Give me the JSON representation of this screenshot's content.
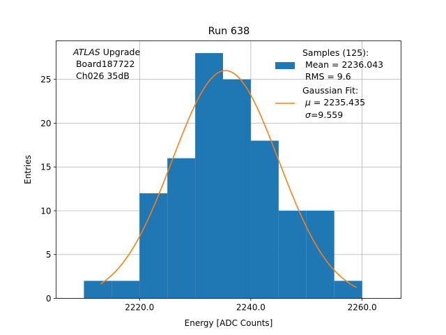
{
  "chart_data": {
    "type": "histogram",
    "title": "Run 638",
    "xlabel": "Energy [ADC Counts]",
    "ylabel": "Entries",
    "xlim": [
      2205,
      2267
    ],
    "ylim": [
      0,
      29.4
    ],
    "grid": true,
    "x_ticks": [
      2220,
      2240,
      2260
    ],
    "x_tick_labels": [
      "2220.0",
      "2240.0",
      "2260.0"
    ],
    "y_ticks": [
      0,
      5,
      10,
      15,
      20,
      25
    ],
    "y_tick_labels": [
      "0",
      "5",
      "10",
      "15",
      "20",
      "25"
    ],
    "bin_edges": [
      2210,
      2215,
      2220,
      2225,
      2230,
      2235,
      2240,
      2245,
      2250,
      2255,
      2260
    ],
    "counts": [
      2,
      2,
      12,
      16,
      28,
      25,
      18,
      10,
      10,
      2
    ],
    "fit": {
      "type": "gaussian",
      "mu": 2235.435,
      "sigma": 9.559,
      "amplitude": 26,
      "x_range": [
        2213,
        2259
      ]
    },
    "annotation": {
      "atlas": "ATLAS",
      "rest": " Upgrade",
      "line2": " Board187722",
      "line3": " Ch026 35dB"
    },
    "legend": {
      "position": "top-right",
      "samples": {
        "line1": "Samples (125):",
        "line2": " Mean = 2236.043",
        "line3": " RMS = 9.6"
      },
      "fit": {
        "line1": "Gaussian Fit:",
        "mu_symbol": "μ",
        "mu_text": " = 2235.435",
        "sigma_symbol": "σ",
        "sigma_text": "=9.559"
      }
    },
    "colors": {
      "hist": "#1f77b4",
      "fit": "#ff7f0e",
      "grid": "#b0b0b0"
    }
  }
}
